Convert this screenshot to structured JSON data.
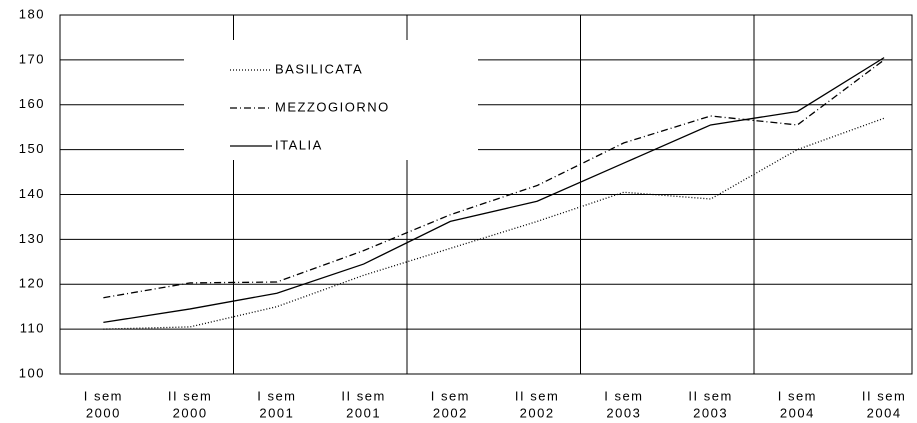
{
  "chart_data": {
    "type": "line",
    "categories": [
      [
        "I sem",
        "2000"
      ],
      [
        "II sem",
        "2000"
      ],
      [
        "I sem",
        "2001"
      ],
      [
        "II sem",
        "2001"
      ],
      [
        "I sem",
        "2002"
      ],
      [
        "II sem",
        "2002"
      ],
      [
        "I sem",
        "2003"
      ],
      [
        "II sem",
        "2003"
      ],
      [
        "I sem",
        "2004"
      ],
      [
        "II sem",
        "2004"
      ]
    ],
    "series": [
      {
        "name": "BASILICATA",
        "color": "#000000",
        "dash": "1,2",
        "values": [
          110,
          110.5,
          115,
          122,
          128,
          134,
          140.5,
          139,
          150,
          157
        ]
      },
      {
        "name": "MEZZOGIORNO",
        "color": "#000000",
        "dash": "7,3,1,3",
        "values": [
          117,
          120.3,
          120.5,
          127.5,
          135.5,
          142,
          151.5,
          157.5,
          155.5,
          170
        ]
      },
      {
        "name": "ITALIA",
        "color": "#000000",
        "dash": "none",
        "values": [
          111.5,
          114.5,
          118,
          124.5,
          134,
          138.5,
          147,
          155.5,
          158.5,
          170.5
        ]
      }
    ],
    "ylim": [
      100,
      180
    ],
    "yticks": [
      100,
      110,
      120,
      130,
      140,
      150,
      160,
      170,
      180
    ],
    "grid": true
  }
}
